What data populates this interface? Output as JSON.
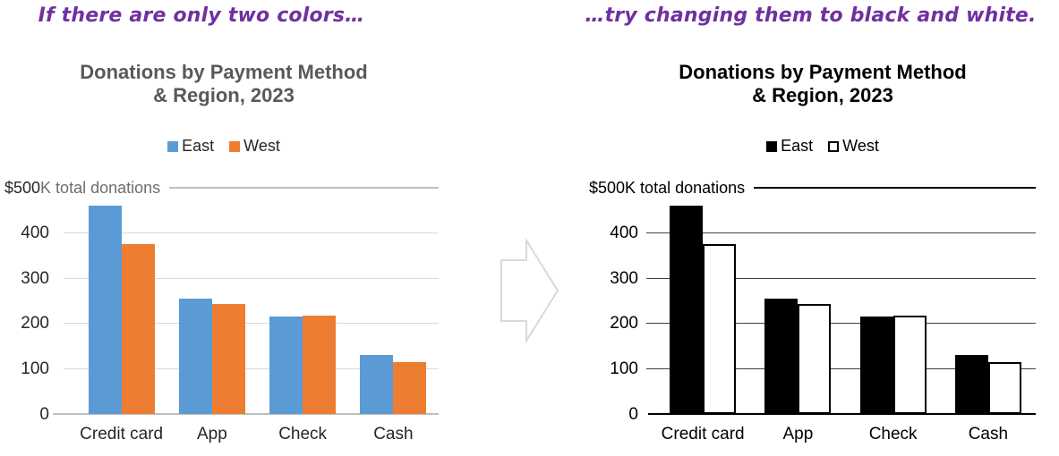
{
  "captions": {
    "left": "If there are only two colors…",
    "right": "…try changing them to black and white.",
    "color": "#7030A0"
  },
  "arrow": {
    "icon": "right-block-arrow",
    "stroke": "#D9D9D9"
  },
  "chart_data": [
    {
      "type": "bar",
      "variant": "two-colors",
      "title": "Donations by Payment Method\n& Region, 2023",
      "categories": [
        "Credit card",
        "App",
        "Check",
        "Cash"
      ],
      "series": [
        {
          "name": "East",
          "values": [
            460,
            255,
            215,
            130
          ],
          "fill": "#5B9BD5",
          "border_width": 0,
          "border_color": ""
        },
        {
          "name": "West",
          "values": [
            375,
            243,
            217,
            115
          ],
          "fill": "#ED7D31",
          "border_width": 0,
          "border_color": ""
        }
      ],
      "ylim": [
        0,
        500
      ],
      "ytick_interval": 100,
      "yticks": [
        "400",
        "300",
        "200",
        "100",
        "0"
      ],
      "top_tick": "$500",
      "top_note": "K total donations",
      "legend_position": "top",
      "grid": true,
      "style": {
        "title_color": "#595959",
        "tick_color": "#262626",
        "note_color": "#6E6E6E",
        "grid_color": "#D9D9D9",
        "axis_color": "#BFBFBF",
        "topline_color": "#BFBFBF"
      }
    },
    {
      "type": "bar",
      "variant": "black-and-white",
      "title": "Donations by Payment Method\n& Region, 2023",
      "categories": [
        "Credit card",
        "App",
        "Check",
        "Cash"
      ],
      "series": [
        {
          "name": "East",
          "values": [
            460,
            255,
            215,
            130
          ],
          "fill": "#000000",
          "border_width": 0,
          "border_color": ""
        },
        {
          "name": "West",
          "values": [
            375,
            243,
            217,
            115
          ],
          "fill": "#FFFFFF",
          "border_width": 2.5,
          "border_color": "#000000"
        }
      ],
      "ylim": [
        0,
        500
      ],
      "ytick_interval": 100,
      "yticks": [
        "400",
        "300",
        "200",
        "100",
        "0"
      ],
      "top_tick": "$500",
      "top_note": "K total donations",
      "legend_position": "top",
      "grid": true,
      "style": {
        "title_color": "#000000",
        "tick_color": "#000000",
        "note_color": "#000000",
        "grid_color": "#404040",
        "axis_color": "#000000",
        "topline_color": "#000000"
      }
    }
  ]
}
